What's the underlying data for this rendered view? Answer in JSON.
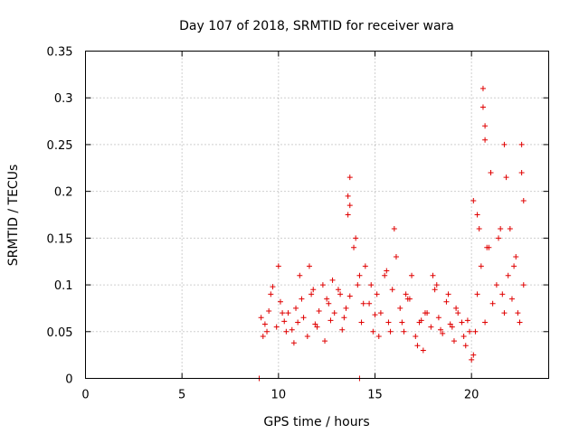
{
  "chart_data": {
    "type": "scatter",
    "title": "Day 107 of 2018, SRMTID for receiver wara",
    "xlabel": "GPS time / hours",
    "ylabel": "SRMTID / TECUs",
    "xlim": [
      0,
      24
    ],
    "ylim": [
      0,
      0.35
    ],
    "xticks": [
      0,
      5,
      10,
      15,
      20
    ],
    "xtick_labels": [
      "0",
      "5",
      "10",
      "15",
      "20"
    ],
    "yticks": [
      0,
      0.05,
      0.1,
      0.15,
      0.2,
      0.25,
      0.3,
      0.35
    ],
    "ytick_labels": [
      "0",
      "0.05",
      "0.1",
      "0.15",
      "0.2",
      "0.25",
      "0.3",
      "0.35"
    ],
    "grid": true,
    "marker": "+",
    "color": "#e00000",
    "series": [
      {
        "name": "SRMTID",
        "x": [
          9.1,
          9.3,
          9.5,
          9.7,
          9.9,
          10.1,
          10.3,
          10.5,
          10.7,
          10.9,
          11.1,
          11.3,
          11.5,
          11.7,
          11.9,
          12.1,
          12.3,
          12.5,
          12.7,
          12.9,
          13.1,
          13.3,
          13.5,
          13.7,
          13.9,
          14.1,
          14.3,
          14.5,
          14.7,
          14.9,
          15.1,
          15.3,
          15.5,
          15.7,
          15.9,
          16.1,
          16.3,
          16.5,
          16.7,
          16.9,
          17.1,
          17.3,
          17.5,
          17.7,
          17.9,
          18.1,
          18.3,
          18.5,
          18.7,
          18.9,
          19.1,
          19.3,
          19.5,
          19.7,
          19.9,
          20.1,
          20.3,
          20.5,
          20.7,
          20.9,
          21.1,
          21.3,
          21.5,
          21.7,
          21.9,
          22.1,
          22.3,
          22.5,
          22.7,
          9.2,
          9.6,
          10.0,
          10.4,
          10.8,
          11.2,
          11.6,
          12.0,
          12.4,
          12.8,
          13.2,
          13.6,
          13.6,
          13.7,
          13.7,
          14.0,
          14.4,
          14.8,
          15.2,
          15.6,
          16.0,
          16.4,
          16.8,
          17.2,
          17.6,
          18.0,
          18.4,
          18.8,
          19.2,
          19.6,
          20.0,
          20.1,
          20.3,
          20.4,
          20.6,
          20.6,
          20.7,
          20.7,
          21.0,
          21.4,
          21.7,
          21.8,
          22.0,
          22.2,
          22.6,
          22.6,
          22.7,
          9.4,
          10.2,
          11.0,
          11.8,
          12.6,
          13.4,
          14.2,
          15.0,
          15.8,
          16.6,
          17.4,
          18.2,
          19.0,
          19.8,
          20.2,
          20.8,
          21.6,
          22.4,
          9.0,
          14.2
        ],
        "y": [
          0.065,
          0.058,
          0.072,
          0.098,
          0.055,
          0.082,
          0.061,
          0.07,
          0.052,
          0.075,
          0.11,
          0.065,
          0.045,
          0.09,
          0.058,
          0.072,
          0.1,
          0.085,
          0.062,
          0.07,
          0.095,
          0.052,
          0.075,
          0.088,
          0.14,
          0.1,
          0.06,
          0.12,
          0.08,
          0.05,
          0.09,
          0.07,
          0.11,
          0.06,
          0.095,
          0.13,
          0.075,
          0.05,
          0.085,
          0.11,
          0.045,
          0.06,
          0.03,
          0.07,
          0.055,
          0.095,
          0.065,
          0.048,
          0.082,
          0.058,
          0.04,
          0.07,
          0.06,
          0.035,
          0.05,
          0.025,
          0.09,
          0.12,
          0.06,
          0.14,
          0.08,
          0.1,
          0.16,
          0.07,
          0.11,
          0.085,
          0.13,
          0.06,
          0.1,
          0.045,
          0.09,
          0.12,
          0.05,
          0.038,
          0.085,
          0.12,
          0.055,
          0.04,
          0.105,
          0.09,
          0.175,
          0.195,
          0.215,
          0.185,
          0.15,
          0.08,
          0.1,
          0.045,
          0.115,
          0.16,
          0.06,
          0.085,
          0.035,
          0.07,
          0.11,
          0.052,
          0.09,
          0.075,
          0.045,
          0.02,
          0.19,
          0.175,
          0.16,
          0.31,
          0.29,
          0.27,
          0.255,
          0.22,
          0.15,
          0.25,
          0.215,
          0.16,
          0.12,
          0.25,
          0.22,
          0.19,
          0.05,
          0.07,
          0.06,
          0.095,
          0.08,
          0.065,
          0.11,
          0.068,
          0.05,
          0.09,
          0.062,
          0.1,
          0.055,
          0.062,
          0.05,
          0.14,
          0.09,
          0.07,
          0.0,
          0.0
        ]
      }
    ]
  }
}
